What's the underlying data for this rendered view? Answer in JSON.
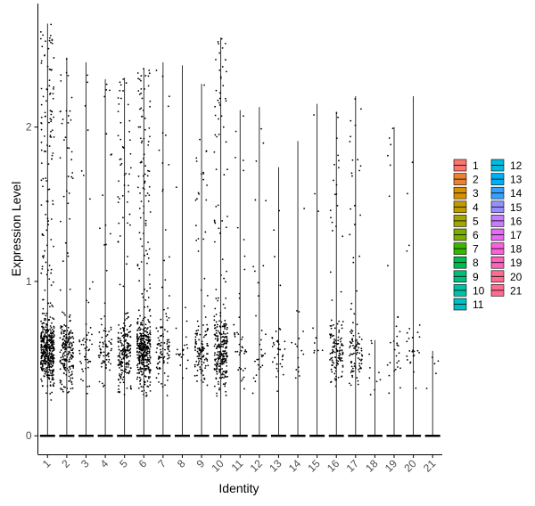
{
  "chart_data": {
    "type": "violin",
    "xlabel": "Identity",
    "ylabel": "Expression Level",
    "categories": [
      "1",
      "2",
      "3",
      "4",
      "5",
      "6",
      "7",
      "8",
      "9",
      "10",
      "11",
      "12",
      "13",
      "14",
      "15",
      "16",
      "17",
      "18",
      "19",
      "20",
      "21"
    ],
    "ylim": [
      -0.12,
      2.8
    ],
    "yticks": [
      0,
      1,
      2
    ],
    "legend_position": "right",
    "legend_columns": 2,
    "series": [
      {
        "name": "1",
        "color": "#F8766D",
        "max": 2.67,
        "density": 1.0
      },
      {
        "name": "2",
        "color": "#EA8331",
        "max": 2.45,
        "density": 0.45
      },
      {
        "name": "3",
        "color": "#D89000",
        "max": 2.42,
        "density": 0.1
      },
      {
        "name": "4",
        "color": "#C09B00",
        "max": 2.31,
        "density": 0.15
      },
      {
        "name": "5",
        "color": "#A3A500",
        "max": 2.32,
        "density": 0.45
      },
      {
        "name": "6",
        "color": "#7CAE00",
        "max": 2.38,
        "density": 0.85
      },
      {
        "name": "7",
        "color": "#39B600",
        "max": 2.42,
        "density": 0.2
      },
      {
        "name": "8",
        "color": "#00BB4E",
        "max": 2.4,
        "density": 0.04
      },
      {
        "name": "9",
        "color": "#00BF7D",
        "max": 2.28,
        "density": 0.25
      },
      {
        "name": "10",
        "color": "#00C1A3",
        "max": 2.58,
        "density": 0.55
      },
      {
        "name": "11",
        "color": "#00BFC4",
        "max": 2.11,
        "density": 0.08
      },
      {
        "name": "12",
        "color": "#00BAE0",
        "max": 2.13,
        "density": 0.06
      },
      {
        "name": "13",
        "color": "#00B0F6",
        "max": 1.74,
        "density": 0.07
      },
      {
        "name": "14",
        "color": "#35A2FF",
        "max": 1.91,
        "density": 0.03
      },
      {
        "name": "15",
        "color": "#9590FF",
        "max": 2.15,
        "density": 0.02
      },
      {
        "name": "16",
        "color": "#C77CFF",
        "max": 2.1,
        "density": 0.25
      },
      {
        "name": "17",
        "color": "#E76BF3",
        "max": 2.2,
        "density": 0.2
      },
      {
        "name": "18",
        "color": "#FA62DB",
        "max": 0.62,
        "density": 0.02
      },
      {
        "name": "19",
        "color": "#FF62BC",
        "max": 2.0,
        "density": 0.06
      },
      {
        "name": "20",
        "color": "#FF6C90",
        "max": 2.2,
        "density": 0.05
      },
      {
        "name": "21",
        "color": "#FF6C91",
        "max": 0.55,
        "density": 0.01
      }
    ]
  }
}
